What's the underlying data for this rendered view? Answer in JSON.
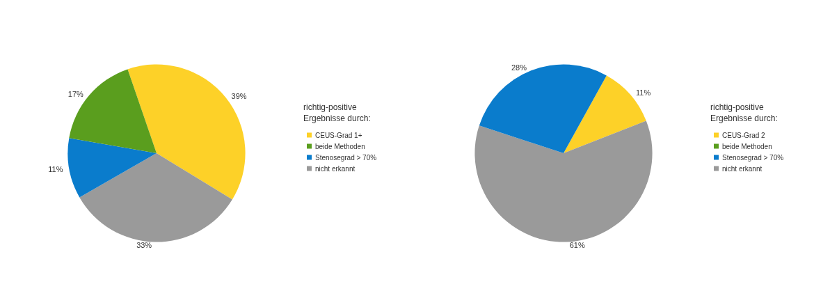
{
  "chart_data": [
    {
      "type": "pie",
      "categories": [
        "CEUS-Grad 1+",
        "beide Methoden",
        "Stenosegrad > 70%",
        "nicht erkannt"
      ],
      "values": [
        39,
        17,
        11,
        33
      ],
      "value_labels": [
        "39%",
        "17%",
        "11%",
        "33%"
      ],
      "colors": [
        "#fdd128",
        "#5a9e1e",
        "#0a7ccc",
        "#9a9a9a"
      ],
      "legend": "right",
      "legend_title": "richtig-positive Ergebnisse durch:"
    },
    {
      "type": "pie",
      "categories": [
        "CEUS-Grad 2",
        "beide Methoden",
        "Stenosegrad > 70%",
        "nicht erkannt"
      ],
      "values": [
        11,
        0,
        28,
        61
      ],
      "value_labels": [
        "11%",
        null,
        "28%",
        "61%"
      ],
      "colors": [
        "#fdd128",
        "#5a9e1e",
        "#0a7ccc",
        "#9a9a9a"
      ],
      "legend": "right",
      "legend_title": "richtig-positive Ergebnisse durch:"
    }
  ]
}
